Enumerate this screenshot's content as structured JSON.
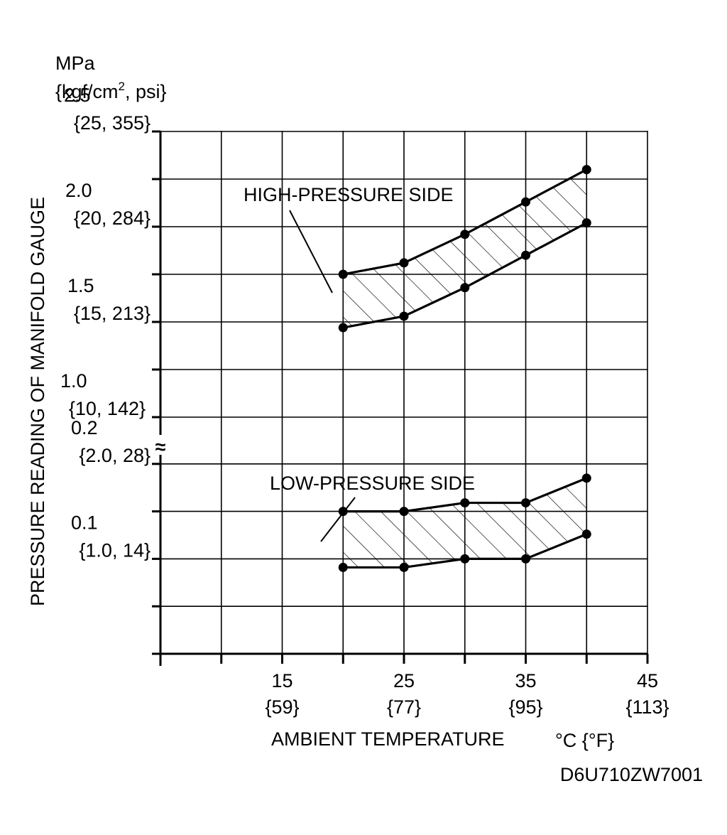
{
  "chart_data": {
    "type": "area",
    "xlabel": "AMBIENT TEMPERATURE",
    "xunit": "°C {°F}",
    "ylabel": "PRESSURE READING OF MANIFOLD GAUGE",
    "yunit_line1": "MPa",
    "yunit_line2_pre": "{kgf/cm",
    "yunit_line2_sup": "2",
    "yunit_line2_post": ", psi}",
    "xlim": [
      5,
      45
    ],
    "x_ticks": [
      {
        "value": 15,
        "c": "15",
        "f": "{59}"
      },
      {
        "value": 25,
        "c": "25",
        "f": "{77}"
      },
      {
        "value": 35,
        "c": "35",
        "f": "{95}"
      },
      {
        "value": 45,
        "c": "45",
        "f": "{113}"
      }
    ],
    "y_ticks": [
      {
        "value": 2.5,
        "mpa": "2.5",
        "alt": "{25, 355}"
      },
      {
        "value": 2.0,
        "mpa": "2.0",
        "alt": "{20, 284}"
      },
      {
        "value": 1.5,
        "mpa": "1.5",
        "alt": "{15, 213}"
      },
      {
        "value": 1.0,
        "mpa": "1.0",
        "alt": "{10, 142}"
      },
      {
        "value": 0.2,
        "mpa": "0.2",
        "alt": "{2.0, 28}"
      },
      {
        "value": 0.1,
        "mpa": "0.1",
        "alt": "{1.0, 14}"
      }
    ],
    "axis_break": "≈",
    "grid": true,
    "bands": [
      {
        "name": "HIGH-PRESSURE SIDE",
        "x": [
          20,
          25,
          30,
          35,
          40
        ],
        "upper": [
          1.75,
          1.81,
          1.96,
          2.13,
          2.3
        ],
        "lower": [
          1.47,
          1.53,
          1.68,
          1.85,
          2.02
        ]
      },
      {
        "name": "LOW-PRESSURE SIDE",
        "x": [
          20,
          25,
          30,
          35,
          40
        ],
        "upper": [
          0.15,
          0.15,
          0.159,
          0.159,
          0.185
        ],
        "lower": [
          0.091,
          0.091,
          0.1,
          0.1,
          0.126
        ]
      }
    ]
  },
  "figure_code": "D6U710ZW7001"
}
